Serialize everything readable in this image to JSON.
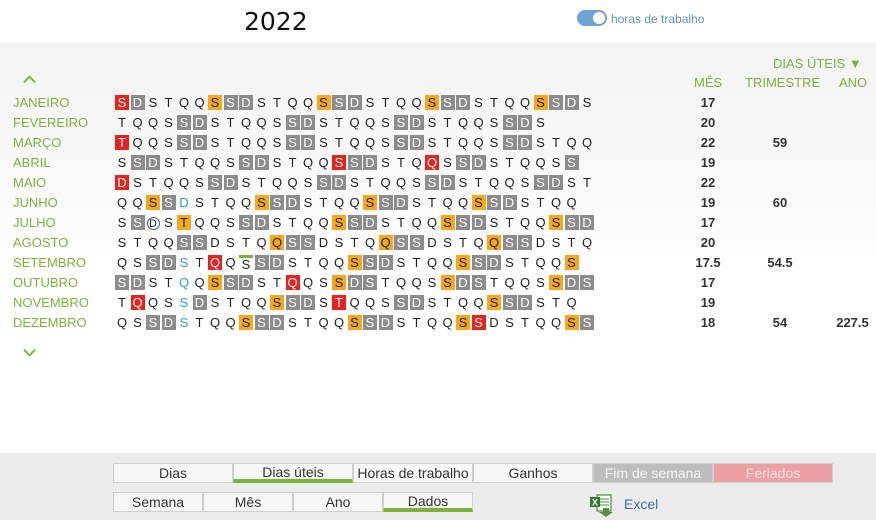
{
  "year": "2022",
  "toggle": {
    "label": "horas de trabalho",
    "on": true
  },
  "headers": {
    "dias_uteis": "DIAS ÚTEIS ▼",
    "mes": "MÊS",
    "trimestre": "TRIMESTRE",
    "ano": "ANO"
  },
  "months": [
    {
      "name": "JANEIRO",
      "mes": "17",
      "tri": "",
      "ano": "",
      "days": "S D S T Q Q S S D S T Q Q S S D S T Q Q S S D S T Q Q S S D S",
      "styles": "h w . . . . s w w . . . . s w w . . . . s w w . . . . s w w ."
    },
    {
      "name": "FEVEREIRO",
      "mes": "20",
      "tri": "",
      "ano": "",
      "days": "T Q Q S S D S T Q Q S S D S T Q Q S S D S T Q Q S S D S",
      "styles": ". . . . w w . . . . . w w . . . . . w w . . . . . w w ."
    },
    {
      "name": "MARÇO",
      "mes": "22",
      "tri": "59",
      "ano": "",
      "days": "T Q Q S S D S T Q Q S S D S T Q Q S S D S T Q Q S S D S T Q Q",
      "styles": "h . . . w w . . . . . w w . . . . . w w . . . . . w w . . . ."
    },
    {
      "name": "ABRIL",
      "mes": "19",
      "tri": "",
      "ano": "",
      "days": "S S D S T Q Q S S D S T Q Q S S D S T Q Q S S D S T Q Q S S",
      "styles": ". w w . . . . . w w . . . . h w w . . . h . w w . . . . . w"
    },
    {
      "name": "MAIO",
      "mes": "22",
      "tri": "",
      "ano": "",
      "days": "D S T Q Q S S D S T Q Q S S D S T Q Q S S D S T Q Q S S D S T",
      "styles": "h . . . . . w w . . . . . w w . . . . . w w . . . . . w w . ."
    },
    {
      "name": "JUNHO",
      "mes": "19",
      "tri": "60",
      "ano": "",
      "days": "Q Q S S D S T Q Q S S D S T Q Q S S D S T Q Q S S D S T Q Q",
      "styles": ". . s w b . . . . s w w . . . . s w w . . . . s w w . . . ."
    },
    {
      "name": "JULHO",
      "mes": "17",
      "tri": "",
      "ano": "",
      "days": "S S D S T Q Q S S D S T Q Q S S D S T Q Q S S D S T Q Q S S D",
      "styles": ". w c . s . . . w w . . . . s w w . . . . s w w . . . . s w w"
    },
    {
      "name": "AGOSTO",
      "mes": "20",
      "tri": "",
      "ano": "",
      "days": "S T Q Q S S D S T Q Q S S D S T Q Q S S D S T Q Q S S D S T Q",
      "styles": ". . . . w w . . . . s w w . . . . s w w . . . . s w w . . . ."
    },
    {
      "name": "SETEMBRO",
      "mes": "17.5",
      "tri": "54.5",
      "ano": "",
      "days": "Q S S D S T Q Q S S D S T Q Q S S D S T Q Q S S D S T Q Q S",
      "styles": ". . w w b . h . m w w . . . . s w w . . . . s w w . . . . s"
    },
    {
      "name": "OUTUBRO",
      "mes": "17",
      "tri": "",
      "ano": "",
      "days": "S D S T Q Q S S D S T Q Q S S D S T Q Q S S D S T Q Q S S D S",
      "styles": "w w . . b . s w w . . h . . s w w . . . . s w w . . . . s w w ."
    },
    {
      "name": "NOVEMBRO",
      "mes": "19",
      "tri": "",
      "ano": "",
      "days": "T Q Q S S D S T Q Q S S D S T Q Q S S D S T Q Q S S D S T Q",
      "styles": ". h . . b w . . . . s w w . h . . . w w . . . . s w w . . ."
    },
    {
      "name": "DEZEMBRO",
      "mes": "18",
      "tri": "54",
      "ano": "227.5",
      "days": "Q S S D S T Q Q S S D S T Q Q S S D S T Q Q S S D S T Q Q S S",
      "styles": ". . w w b . . . s w w . . . . s w w . . . . s h . . . . . s w"
    }
  ],
  "tabs_row1": [
    {
      "label": "Dias",
      "style": ""
    },
    {
      "label": "Dias úteis",
      "style": "active"
    },
    {
      "label": "Horas de trabalho",
      "style": ""
    },
    {
      "label": "Ganhos",
      "style": ""
    },
    {
      "label": "Fim de semana",
      "style": "gray"
    },
    {
      "label": "Feriados",
      "style": "pink"
    }
  ],
  "tabs_row2": [
    {
      "label": "Semana",
      "style": ""
    },
    {
      "label": "Mês",
      "style": ""
    },
    {
      "label": "Ano",
      "style": ""
    },
    {
      "label": "Dados",
      "style": "active"
    }
  ],
  "excel": {
    "label": "Excel",
    "icon": "excel-icon"
  },
  "colors": {
    "accent": "#7db23a",
    "weekend": "#8c8c8c",
    "saturday": "#f5a81c",
    "holiday": "#e8221c",
    "blue_day": "#2f9bd5"
  }
}
